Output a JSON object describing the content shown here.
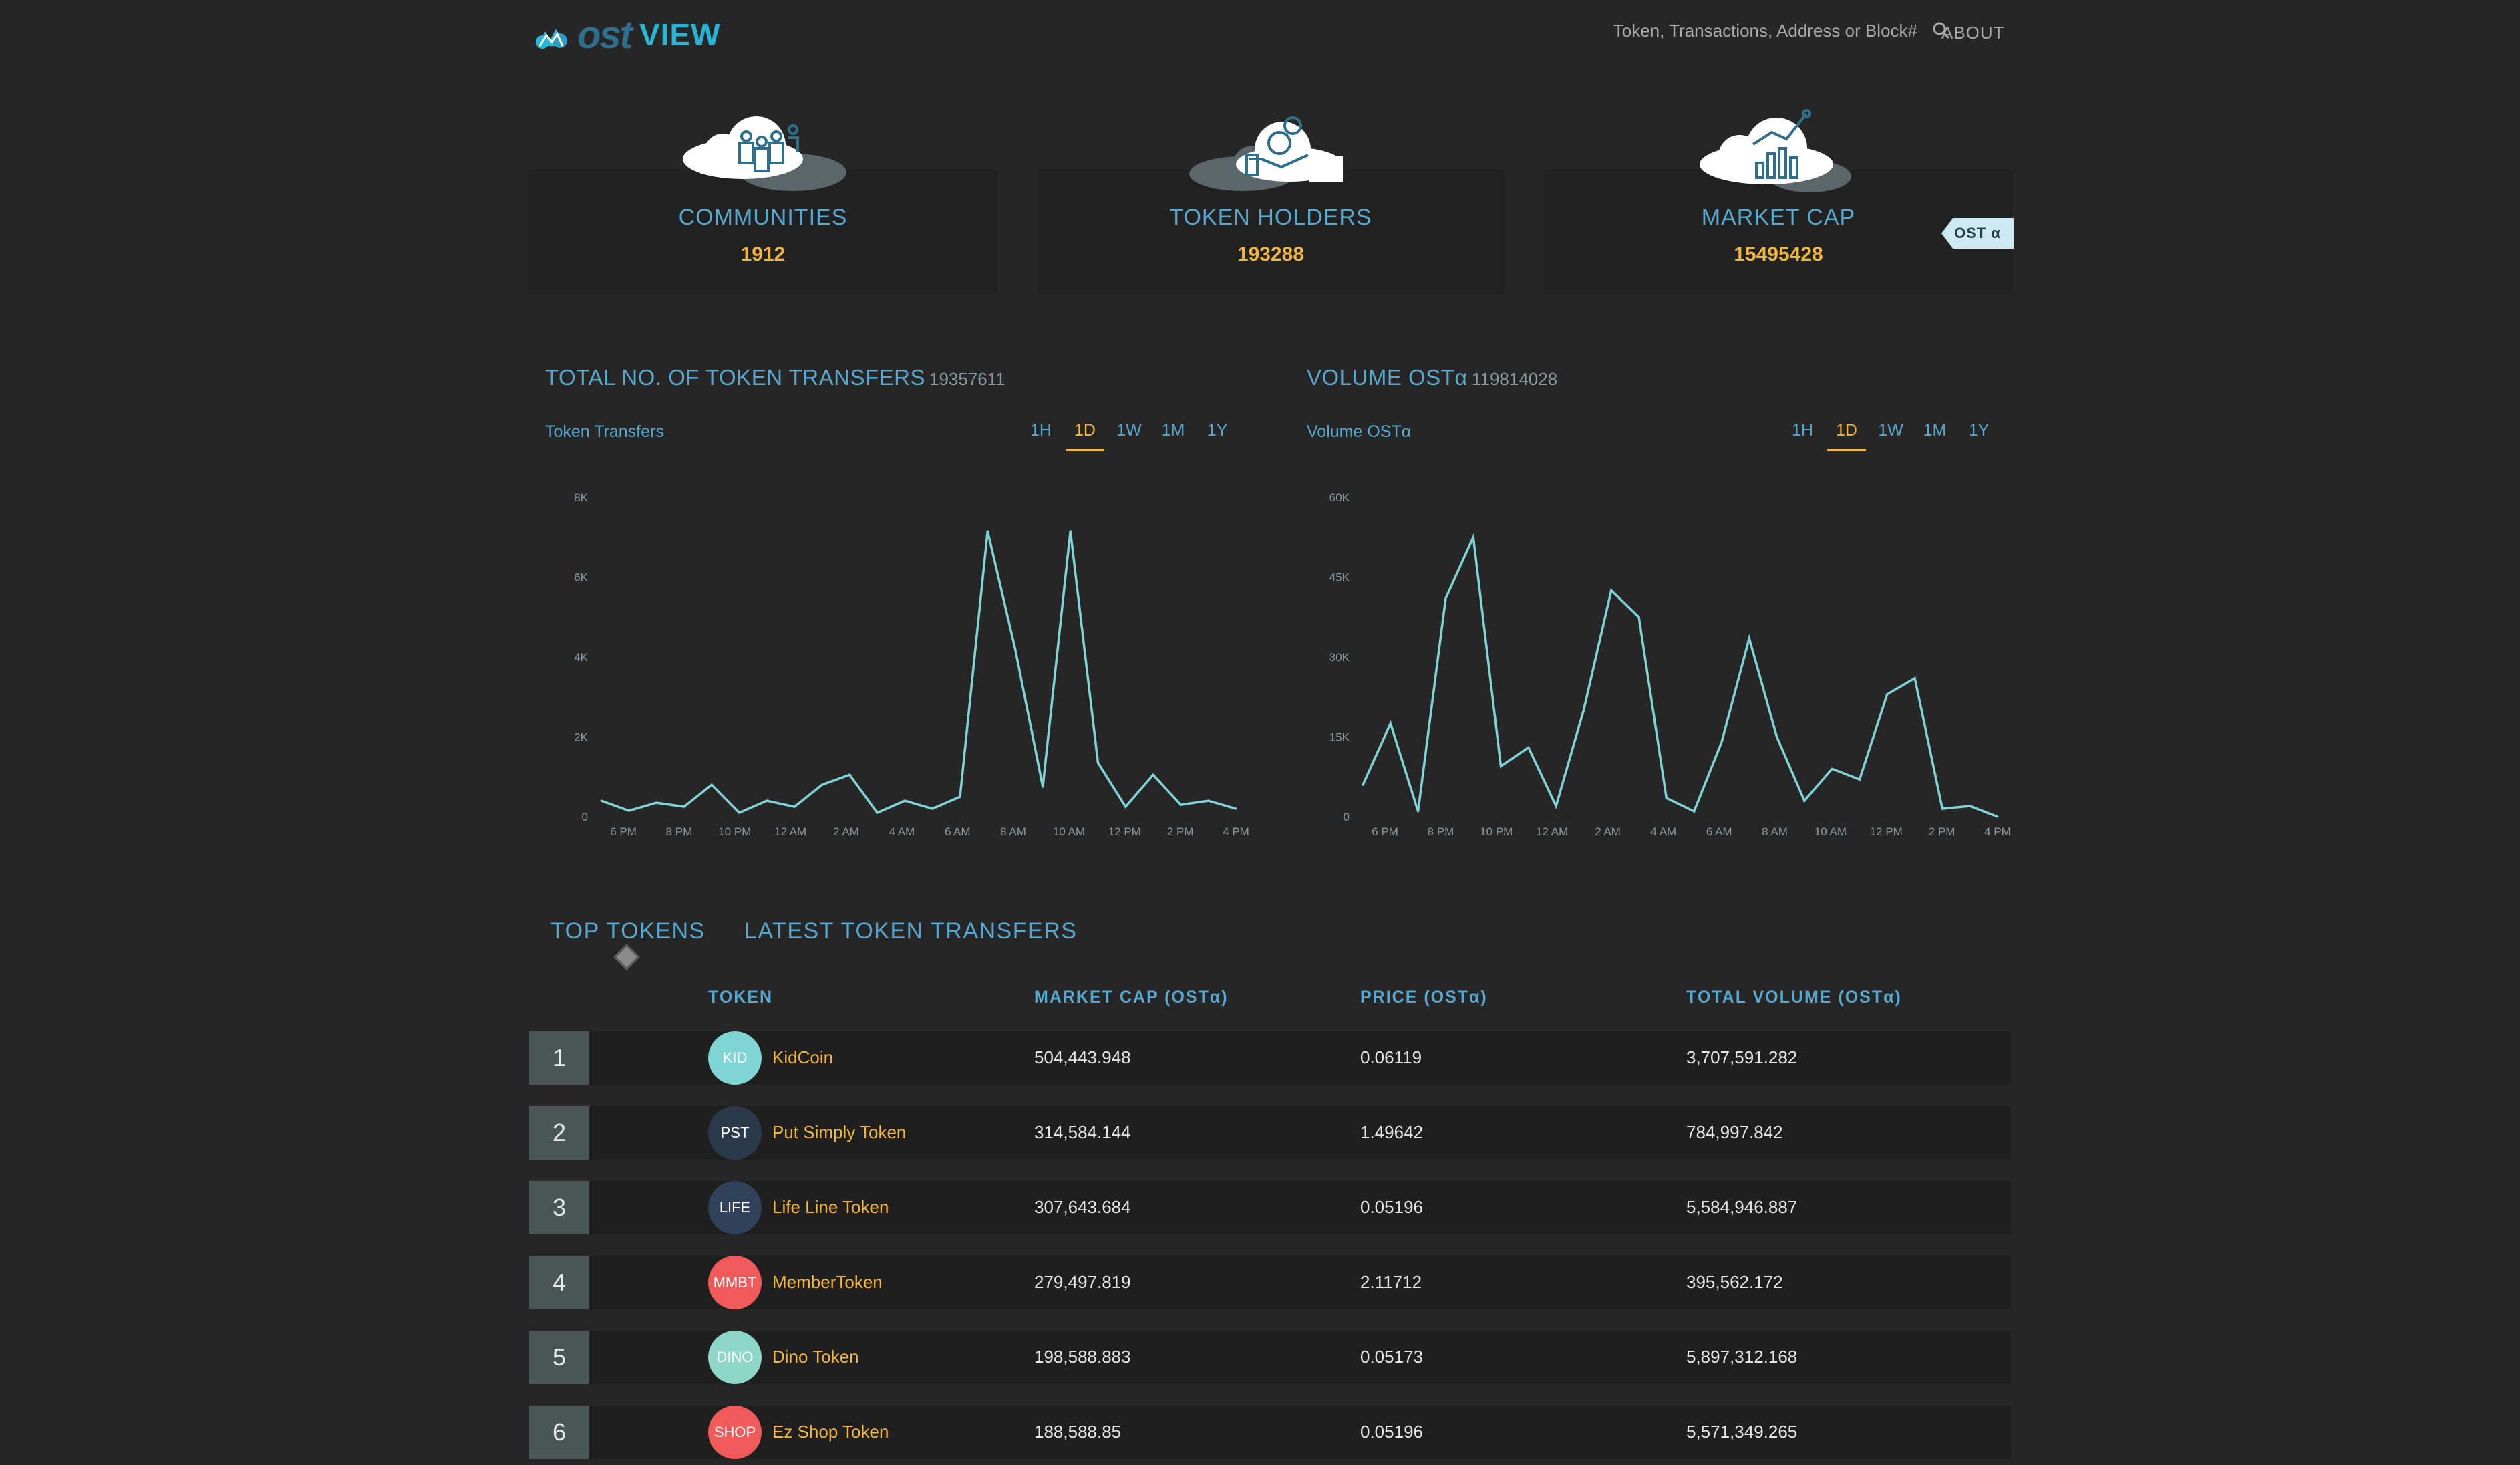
{
  "header": {
    "logo_ost": "ost",
    "logo_view": "VIEW",
    "search_placeholder": "Token, Transactions, Address or Block#",
    "about_label": "ABOUT"
  },
  "stats": [
    {
      "title": "COMMUNITIES",
      "value": "1912"
    },
    {
      "title": "TOKEN HOLDERS",
      "value": "193288"
    },
    {
      "title": "MARKET CAP",
      "value": "15495428"
    }
  ],
  "ost_tag": "OST α",
  "charts": {
    "transfers": {
      "title": "TOTAL NO. OF TOKEN TRANSFERS",
      "total": "19357611",
      "label": "Token Transfers",
      "ranges": [
        "1H",
        "1D",
        "1W",
        "1M",
        "1Y"
      ],
      "active_range": "1D"
    },
    "volume": {
      "title": "VOLUME OSTα",
      "total": "119814028",
      "label": "Volume OSTα",
      "ranges": [
        "1H",
        "1D",
        "1W",
        "1M",
        "1Y"
      ],
      "active_range": "1D"
    }
  },
  "chart_data": [
    {
      "type": "line",
      "name": "transfers",
      "line_color": "#7fd4d9",
      "y_ticks": [
        "0",
        "2K",
        "4K",
        "6K",
        "8K"
      ],
      "ylim": [
        0,
        8000
      ],
      "x_ticks": [
        "6 PM",
        "8 PM",
        "10 PM",
        "12 AM",
        "2 AM",
        "4 AM",
        "6 AM",
        "8 AM",
        "10 AM",
        "12 PM",
        "2 PM",
        "4 PM"
      ],
      "values": [
        400,
        150,
        350,
        250,
        800,
        100,
        400,
        250,
        800,
        1050,
        100,
        400,
        200,
        500,
        7150,
        4200,
        750,
        7150,
        1350,
        250,
        1050,
        300,
        400,
        200
      ]
    },
    {
      "type": "line",
      "name": "volume",
      "line_color": "#7fd4d9",
      "y_ticks": [
        "0",
        "15K",
        "30K",
        "45K",
        "60K"
      ],
      "ylim": [
        0,
        60000
      ],
      "x_ticks": [
        "6 PM",
        "8 PM",
        "10 PM",
        "12 AM",
        "2 AM",
        "4 AM",
        "6 AM",
        "8 AM",
        "10 AM",
        "12 PM",
        "2 PM",
        "4 PM"
      ],
      "values": [
        6000,
        17500,
        1000,
        41000,
        52500,
        9500,
        13000,
        2000,
        20000,
        42500,
        37500,
        3500,
        1000,
        14000,
        33500,
        15000,
        3000,
        9000,
        7000,
        23000,
        26000,
        1500,
        2000,
        0
      ]
    }
  ],
  "tabs": {
    "top_tokens": "TOP TOKENS",
    "latest_transfers": "LATEST TOKEN TRANSFERS"
  },
  "table": {
    "headers": [
      "TOKEN",
      "MARKET CAP (OSTα)",
      "PRICE (OSTα)",
      "TOTAL VOLUME (OSTα)"
    ],
    "rows": [
      {
        "rank": "1",
        "symbol": "KID",
        "name": "KidCoin",
        "market_cap": "504,443.948",
        "price": "0.06119",
        "volume": "3,707,591.282",
        "color": "#7fd4d4"
      },
      {
        "rank": "2",
        "symbol": "PST",
        "name": "Put Simply Token",
        "market_cap": "314,584.144",
        "price": "1.49642",
        "volume": "784,997.842",
        "color": "#2b3a4a"
      },
      {
        "rank": "3",
        "symbol": "LIFE",
        "name": "Life Line Token",
        "market_cap": "307,643.684",
        "price": "0.05196",
        "volume": "5,584,946.887",
        "color": "#2f4259"
      },
      {
        "rank": "4",
        "symbol": "MMBT",
        "name": "MemberToken",
        "market_cap": "279,497.819",
        "price": "2.11712",
        "volume": "395,562.172",
        "color": "#f05a5a"
      },
      {
        "rank": "5",
        "symbol": "DINO",
        "name": "Dino Token",
        "market_cap": "198,588.883",
        "price": "0.05173",
        "volume": "5,897,312.168",
        "color": "#8dd6c8"
      },
      {
        "rank": "6",
        "symbol": "SHOP",
        "name": "Ez Shop Token",
        "market_cap": "188,588.85",
        "price": "0.05196",
        "volume": "5,571,349.265",
        "color": "#f05a5a"
      }
    ]
  }
}
